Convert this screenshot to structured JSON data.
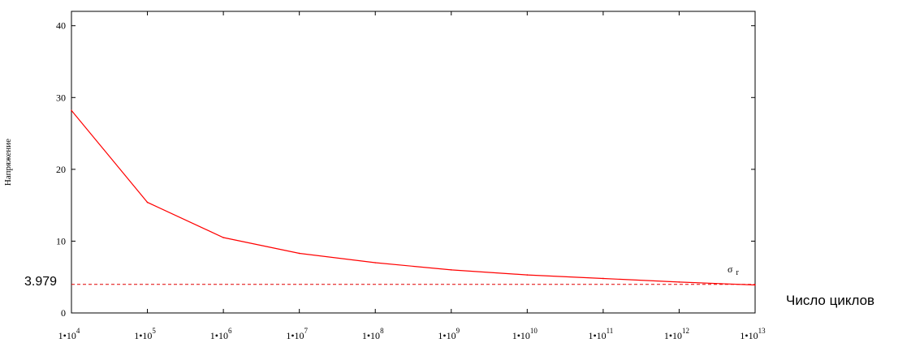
{
  "chart_data": {
    "type": "line",
    "xscale": "log",
    "x": [
      10000,
      100000,
      1000000,
      10000000,
      100000000,
      1000000000,
      10000000000,
      100000000000,
      1000000000000,
      10000000000000
    ],
    "series": [
      {
        "values": [
          28.2,
          15.4,
          10.5,
          8.3,
          7.0,
          6.0,
          5.3,
          4.8,
          4.3,
          3.9
        ]
      }
    ],
    "reference_line": {
      "value": 3.979,
      "label": "3.979",
      "style": "dashed"
    },
    "annotation": {
      "symbol": "σ",
      "subscript": "r"
    },
    "ylabel": "Напряжение",
    "xlabel": "Число циклов",
    "xlim": [
      10000,
      10000000000000
    ],
    "ylim": [
      0,
      42
    ],
    "yticks": [
      0,
      10,
      20,
      30,
      40
    ],
    "xtick_labels": [
      {
        "base": "1•10",
        "exp": "4"
      },
      {
        "base": "1•10",
        "exp": "5"
      },
      {
        "base": "1•10",
        "exp": "6"
      },
      {
        "base": "1•10",
        "exp": "7"
      },
      {
        "base": "1•10",
        "exp": "8"
      },
      {
        "base": "1•10",
        "exp": "9"
      },
      {
        "base": "1•10",
        "exp": "10"
      },
      {
        "base": "1•10",
        "exp": "11"
      },
      {
        "base": "1•10",
        "exp": "12"
      },
      {
        "base": "1•10",
        "exp": "13"
      }
    ],
    "grid": false,
    "colors": {
      "series": "#ff0000",
      "reference": "#e00000",
      "axes": "#000000"
    }
  }
}
